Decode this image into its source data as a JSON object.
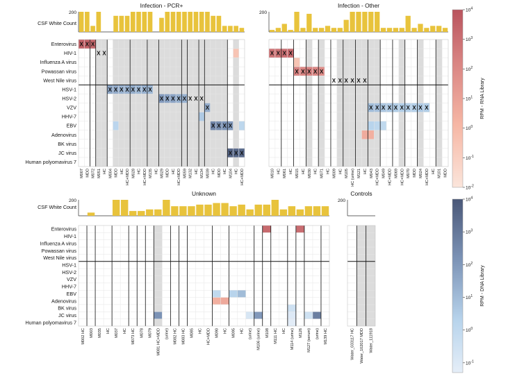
{
  "chart_data": {
    "type": "heatmap",
    "cell_marker": "X",
    "row_label_wbc": "CSF White Count",
    "wbc_axis_max": 200,
    "virus_rows": [
      "Enterovirus",
      "HIV-1",
      "Influenza A virus",
      "Powassan virus",
      "West Nile virus",
      "HSV-1",
      "HSV-2",
      "VZV",
      "HHV-7",
      "EBV",
      "Adenovirus",
      "BK virus",
      "JC virus",
      "Human polyomavirus 7"
    ],
    "colorbars": [
      {
        "label": "RPM - RNA Library",
        "scale": "log",
        "ticks": [
          "10^-2",
          "10^-1",
          "10^0",
          "10^1",
          "10^2",
          "10^3",
          "10^4"
        ],
        "low_color": "#fbe5db",
        "high_color": "#b9545e"
      },
      {
        "label": "RPM - DNA Library",
        "scale": "log",
        "ticks": [
          "10^-1",
          "10^0",
          "10^1",
          "10^2",
          "10^3",
          "10^4"
        ],
        "low_color": "#e5eef8",
        "high_color": "#4a5878"
      }
    ],
    "panels": [
      {
        "title": "Infection - PCR+",
        "columns": [
          "M007",
          "MDD",
          "M072",
          "M051",
          "HC",
          "M004",
          "MDD",
          "HC",
          "HC+MDD",
          "M028",
          "HC",
          "HC+MDD",
          "M135",
          "HC",
          "M029",
          "MDD",
          "HC",
          "HC+MDD",
          "M059",
          "M132",
          "HC",
          "M134",
          "M039",
          "HC",
          "MDD",
          "HC",
          "M104",
          "HC",
          "HC+MDD"
        ],
        "wbc": [
          200,
          200,
          60,
          200,
          0,
          0,
          160,
          160,
          160,
          200,
          200,
          200,
          200,
          0,
          140,
          200,
          200,
          200,
          200,
          200,
          200,
          200,
          200,
          160,
          160,
          60,
          60,
          60,
          40
        ],
        "shaded": [
          3,
          4,
          6,
          7,
          8,
          9,
          10,
          11,
          12,
          13,
          14,
          15,
          16,
          17,
          18,
          19,
          20,
          21,
          22,
          23,
          24,
          25,
          27
        ],
        "x_cells": [
          [
            0,
            0
          ],
          [
            0,
            1
          ],
          [
            0,
            2
          ],
          [
            1,
            3
          ],
          [
            1,
            4
          ],
          [
            5,
            5
          ],
          [
            5,
            6
          ],
          [
            5,
            7
          ],
          [
            5,
            8
          ],
          [
            5,
            9
          ],
          [
            5,
            10
          ],
          [
            5,
            11
          ],
          [
            5,
            12
          ],
          [
            6,
            14
          ],
          [
            6,
            15
          ],
          [
            6,
            16
          ],
          [
            6,
            17
          ],
          [
            6,
            18
          ],
          [
            6,
            19
          ],
          [
            6,
            20
          ],
          [
            6,
            21
          ],
          [
            7,
            22
          ],
          [
            9,
            23
          ],
          [
            9,
            24
          ],
          [
            9,
            25
          ],
          [
            9,
            26
          ],
          [
            12,
            26
          ],
          [
            12,
            27
          ],
          [
            12,
            28
          ]
        ],
        "rna": [
          [
            0,
            0,
            3.5
          ],
          [
            0,
            1,
            3.5
          ],
          [
            0,
            2,
            3.3
          ],
          [
            1,
            27,
            -0.5
          ]
        ],
        "dna": [
          [
            5,
            5,
            1.6
          ],
          [
            5,
            6,
            1.5
          ],
          [
            5,
            7,
            1.3
          ],
          [
            5,
            8,
            1.3
          ],
          [
            5,
            9,
            1.4
          ],
          [
            5,
            10,
            1.2
          ],
          [
            5,
            11,
            1.3
          ],
          [
            5,
            12,
            1.1
          ],
          [
            6,
            14,
            2.0
          ],
          [
            6,
            15,
            1.8
          ],
          [
            6,
            16,
            1.7
          ],
          [
            6,
            17,
            1.4
          ],
          [
            6,
            18,
            1.3
          ],
          [
            7,
            22,
            1.5
          ],
          [
            8,
            21,
            0.6
          ],
          [
            9,
            6,
            0.2
          ],
          [
            9,
            23,
            2.6
          ],
          [
            9,
            24,
            2.4
          ],
          [
            9,
            25,
            2.2
          ],
          [
            9,
            26,
            2.0
          ],
          [
            9,
            28,
            0.1
          ],
          [
            12,
            26,
            3.6
          ],
          [
            12,
            27,
            3.5
          ],
          [
            12,
            28,
            3.4
          ]
        ]
      },
      {
        "title": "Infection - Other",
        "columns": [
          "M010",
          "HC",
          "M061",
          "HC",
          "M015",
          "HC",
          "M030",
          "HC",
          "M071",
          "HC",
          "M009",
          "HC",
          "M105",
          "HC (urine)",
          "M121",
          "HC",
          "M043",
          "HC+MDD",
          "M049",
          "HC+MDD",
          "M069",
          "HC+MDD",
          "M070",
          "MDD",
          "M024",
          "HC+MDD",
          "HC",
          "M101",
          "MDD"
        ],
        "wbc": [
          20,
          40,
          80,
          20,
          200,
          40,
          180,
          40,
          40,
          60,
          40,
          40,
          120,
          200,
          200,
          200,
          200,
          200,
          40,
          40,
          40,
          40,
          160,
          40,
          80,
          40,
          60,
          60,
          40
        ],
        "shaded": [
          6,
          8,
          11,
          12,
          13,
          14,
          15,
          16,
          17,
          21,
          24,
          27
        ],
        "x_cells": [
          [
            1,
            0
          ],
          [
            1,
            1
          ],
          [
            1,
            2
          ],
          [
            1,
            3
          ],
          [
            3,
            4
          ],
          [
            3,
            5
          ],
          [
            3,
            6
          ],
          [
            3,
            7
          ],
          [
            3,
            8
          ],
          [
            4,
            10
          ],
          [
            4,
            11
          ],
          [
            4,
            12
          ],
          [
            4,
            13
          ],
          [
            4,
            14
          ],
          [
            4,
            15
          ],
          [
            7,
            16
          ],
          [
            7,
            17
          ],
          [
            7,
            18
          ],
          [
            7,
            19
          ],
          [
            7,
            20
          ],
          [
            7,
            21
          ],
          [
            7,
            22
          ],
          [
            7,
            23
          ],
          [
            7,
            24
          ],
          [
            7,
            25
          ]
        ],
        "rna": [
          [
            1,
            0,
            2.8
          ],
          [
            1,
            1,
            2.8
          ],
          [
            1,
            2,
            3.0
          ],
          [
            1,
            3,
            3.2
          ],
          [
            2,
            4,
            -0.5
          ],
          [
            3,
            4,
            2.3
          ],
          [
            3,
            5,
            2.2
          ],
          [
            3,
            6,
            2.4
          ],
          [
            3,
            7,
            2.1
          ],
          [
            3,
            8,
            1.9
          ],
          [
            10,
            15,
            0.6
          ],
          [
            10,
            16,
            0.4
          ]
        ],
        "dna": [
          [
            7,
            16,
            1.0
          ],
          [
            7,
            17,
            0.9
          ],
          [
            7,
            18,
            0.7
          ],
          [
            7,
            19,
            0.6
          ],
          [
            7,
            20,
            0.5
          ],
          [
            7,
            21,
            0.5
          ],
          [
            7,
            22,
            0.4
          ],
          [
            7,
            23,
            0.4
          ],
          [
            7,
            24,
            0.6
          ],
          [
            7,
            25,
            0.5
          ],
          [
            9,
            16,
            0.3
          ],
          [
            9,
            17,
            0.1
          ],
          [
            9,
            18,
            0.0
          ]
        ]
      },
      {
        "title": "Unknown",
        "columns": [
          "M002 HC",
          "M003",
          "M035",
          "HC",
          "M037",
          "HC",
          "M073 HC",
          "M078",
          "M079",
          "M081 HC+MDD",
          "(urine)",
          "M082 HC",
          "M083 HC",
          "M085",
          "HC",
          "HC+MDD",
          "M090",
          "HC",
          "M095",
          "HC",
          "(urine)",
          "M106 (urine)",
          "M108",
          "M111 HC",
          "HC",
          "M114 (urine)",
          "M126",
          "M127 (serum)",
          "(urine)",
          "M139 HC"
        ],
        "wbc": [
          0,
          40,
          0,
          0,
          200,
          200,
          60,
          60,
          80,
          80,
          200,
          120,
          120,
          120,
          140,
          140,
          160,
          160,
          120,
          140,
          80,
          140,
          140,
          200,
          80,
          120,
          80,
          120,
          120,
          120
        ],
        "shaded": [
          9
        ],
        "x_cells": [],
        "rna": [
          [
            0,
            22,
            3.2
          ],
          [
            0,
            26,
            3.1
          ],
          [
            10,
            16,
            0.4
          ],
          [
            10,
            17,
            0.7
          ]
        ],
        "dna": [
          [
            9,
            16,
            0.0
          ],
          [
            9,
            18,
            0.3
          ],
          [
            9,
            19,
            1.0
          ],
          [
            11,
            25,
            -0.5
          ],
          [
            12,
            9,
            2.2
          ],
          [
            12,
            20,
            -0.8
          ],
          [
            12,
            21,
            2.0
          ],
          [
            12,
            25,
            -1.0
          ],
          [
            12,
            27,
            -0.5
          ],
          [
            12,
            28,
            2.8
          ],
          [
            13,
            25,
            -1.2
          ]
        ]
      },
      {
        "title": "Controls",
        "columns": [
          "Water_033117 HC",
          "Water_102017 MDD",
          "Water_111918"
        ],
        "wbc": [
          0,
          0,
          0
        ],
        "wbc_axis_max": 200,
        "shaded": [
          1,
          2
        ],
        "x_cells": [],
        "rna": [],
        "dna": []
      }
    ]
  }
}
